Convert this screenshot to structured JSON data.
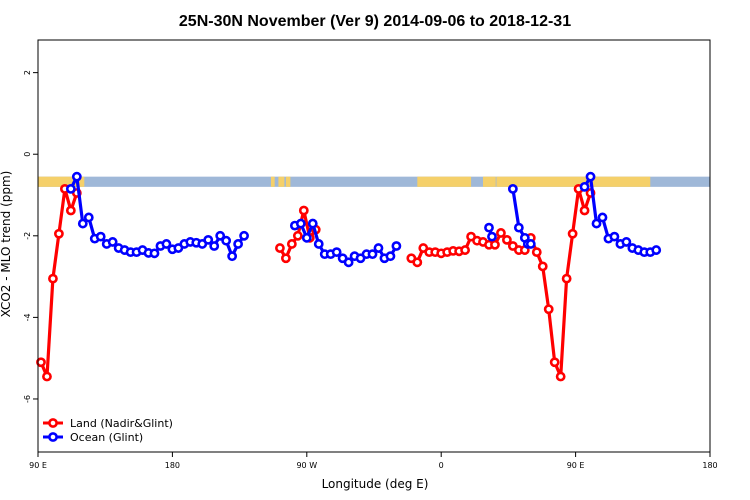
{
  "chart_data": {
    "type": "line",
    "title": "25N-30N November (Ver 9)   2014-09-06 to 2018-12-31",
    "xlabel": "Longitude (deg E)",
    "ylabel": "XCO2 - MLO trend (ppm)",
    "xlim": [
      90,
      540
    ],
    "ylim": [
      -7.3,
      2.8
    ],
    "x_ticks": [
      {
        "value": 90,
        "label": "90 E"
      },
      {
        "value": 180,
        "label": "180"
      },
      {
        "value": 270,
        "label": "90 W"
      },
      {
        "value": 360,
        "label": "0"
      },
      {
        "value": 450,
        "label": "90 E"
      },
      {
        "value": 540,
        "label": "180"
      }
    ],
    "y_ticks": [
      {
        "value": 2,
        "label": "2"
      },
      {
        "value": 0,
        "label": "0"
      },
      {
        "value": -2,
        "label": "-2"
      },
      {
        "value": -4,
        "label": "-4"
      },
      {
        "value": -6,
        "label": "-6"
      }
    ],
    "grid": false,
    "legend_position": "bottom-left",
    "colors": {
      "land": "#ff0000",
      "ocean": "#0000ff",
      "ocean_band": "#9fb8d8",
      "land_band": "#f5d06a"
    },
    "surface_band": {
      "y_top": -0.55,
      "y_bottom": -0.8,
      "land_ranges": [
        [
          90,
          121
        ],
        [
          246,
          248.5
        ],
        [
          251,
          255
        ],
        [
          256,
          259
        ],
        [
          344,
          380
        ],
        [
          388,
          396.5
        ],
        [
          397,
          460
        ],
        [
          460,
          500
        ]
      ]
    },
    "series": [
      {
        "name": "Land (Nadir&Glint)",
        "key": "land",
        "segments": [
          [
            [
              92,
              -5.1
            ],
            [
              96,
              -5.45
            ],
            [
              100,
              -3.05
            ],
            [
              104,
              -1.95
            ],
            [
              108,
              -0.85
            ],
            [
              112,
              -1.38
            ],
            [
              116,
              -0.95
            ]
          ],
          [
            [
              252,
              -2.3
            ],
            [
              256,
              -2.55
            ],
            [
              260,
              -2.2
            ],
            [
              264,
              -2.0
            ],
            [
              268,
              -1.38
            ],
            [
              272,
              -2.05
            ],
            [
              276,
              -1.85
            ]
          ],
          [
            [
              340,
              -2.55
            ],
            [
              344,
              -2.65
            ],
            [
              348,
              -2.3
            ],
            [
              352,
              -2.4
            ],
            [
              356,
              -2.4
            ],
            [
              360,
              -2.43
            ],
            [
              364,
              -2.4
            ],
            [
              368,
              -2.37
            ],
            [
              372,
              -2.38
            ],
            [
              376,
              -2.35
            ],
            [
              380,
              -2.02
            ],
            [
              384,
              -2.12
            ],
            [
              388,
              -2.15
            ],
            [
              392,
              -2.22
            ],
            [
              396,
              -2.22
            ],
            [
              400,
              -1.93
            ],
            [
              404,
              -2.1
            ],
            [
              408,
              -2.25
            ],
            [
              412,
              -2.35
            ],
            [
              416,
              -2.35
            ],
            [
              420,
              -2.05
            ],
            [
              424,
              -2.4
            ],
            [
              428,
              -2.75
            ],
            [
              432,
              -3.8
            ],
            [
              436,
              -5.1
            ],
            [
              440,
              -5.45
            ],
            [
              444,
              -3.05
            ],
            [
              448,
              -1.95
            ],
            [
              452,
              -0.85
            ],
            [
              456,
              -1.38
            ],
            [
              460,
              -0.95
            ]
          ]
        ]
      },
      {
        "name": "Ocean (Glint)",
        "key": "ocean",
        "segments": [
          [
            [
              112,
              -0.85
            ],
            [
              116,
              -0.55
            ],
            [
              120,
              -1.7
            ],
            [
              124,
              -1.55
            ],
            [
              128,
              -2.07
            ],
            [
              132,
              -2.02
            ],
            [
              136,
              -2.2
            ],
            [
              140,
              -2.15
            ],
            [
              144,
              -2.3
            ],
            [
              148,
              -2.35
            ],
            [
              152,
              -2.4
            ],
            [
              156,
              -2.4
            ],
            [
              160,
              -2.35
            ],
            [
              164,
              -2.42
            ],
            [
              168,
              -2.43
            ],
            [
              172,
              -2.25
            ],
            [
              176,
              -2.2
            ],
            [
              180,
              -2.33
            ],
            [
              184,
              -2.3
            ],
            [
              188,
              -2.2
            ],
            [
              192,
              -2.15
            ],
            [
              196,
              -2.17
            ],
            [
              200,
              -2.2
            ],
            [
              204,
              -2.1
            ],
            [
              208,
              -2.25
            ],
            [
              212,
              -2.0
            ],
            [
              216,
              -2.12
            ],
            [
              220,
              -2.5
            ],
            [
              224,
              -2.2
            ],
            [
              228,
              -2.0
            ]
          ],
          [
            [
              262,
              -1.75
            ],
            [
              266,
              -1.7
            ],
            [
              270,
              -2.05
            ],
            [
              274,
              -1.7
            ],
            [
              278,
              -2.2
            ],
            [
              282,
              -2.45
            ],
            [
              286,
              -2.45
            ],
            [
              290,
              -2.4
            ],
            [
              294,
              -2.55
            ],
            [
              298,
              -2.65
            ],
            [
              302,
              -2.5
            ],
            [
              306,
              -2.55
            ],
            [
              310,
              -2.45
            ],
            [
              314,
              -2.45
            ],
            [
              318,
              -2.3
            ],
            [
              322,
              -2.55
            ],
            [
              326,
              -2.5
            ],
            [
              330,
              -2.25
            ]
          ],
          [
            [
              392,
              -1.8
            ],
            [
              394,
              -2.02
            ]
          ],
          [
            [
              408,
              -0.85
            ],
            [
              412,
              -1.8
            ],
            [
              416,
              -2.05
            ],
            [
              418,
              -2.2
            ],
            [
              420,
              -2.2
            ]
          ],
          [
            [
              456,
              -0.8
            ],
            [
              460,
              -0.55
            ],
            [
              464,
              -1.7
            ],
            [
              468,
              -1.55
            ],
            [
              472,
              -2.07
            ],
            [
              476,
              -2.02
            ],
            [
              480,
              -2.2
            ],
            [
              484,
              -2.15
            ],
            [
              488,
              -2.3
            ],
            [
              492,
              -2.35
            ],
            [
              496,
              -2.4
            ],
            [
              500,
              -2.4
            ],
            [
              504,
              -2.35
            ]
          ]
        ]
      }
    ]
  }
}
